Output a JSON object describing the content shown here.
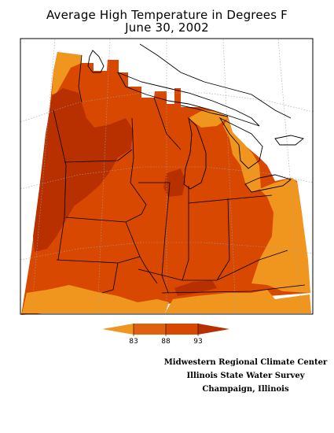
{
  "title": {
    "line1": "Average High Temperature in Degrees F",
    "line2": "June 30, 2002"
  },
  "colors": {
    "lt83": "#f0961e",
    "t83_88": "#e06010",
    "t88_93": "#d84800",
    "gt93": "#b83000",
    "background": "#ffffff",
    "frame": "#000000",
    "graticule": "#a0a0a0"
  },
  "legend": {
    "ticks": [
      "83",
      "88",
      "93"
    ]
  },
  "credits": {
    "line1": "Midwestern Regional Climate Center",
    "line2": "Illinois State Water Survey",
    "line3": "Champaign, Illinois"
  }
}
